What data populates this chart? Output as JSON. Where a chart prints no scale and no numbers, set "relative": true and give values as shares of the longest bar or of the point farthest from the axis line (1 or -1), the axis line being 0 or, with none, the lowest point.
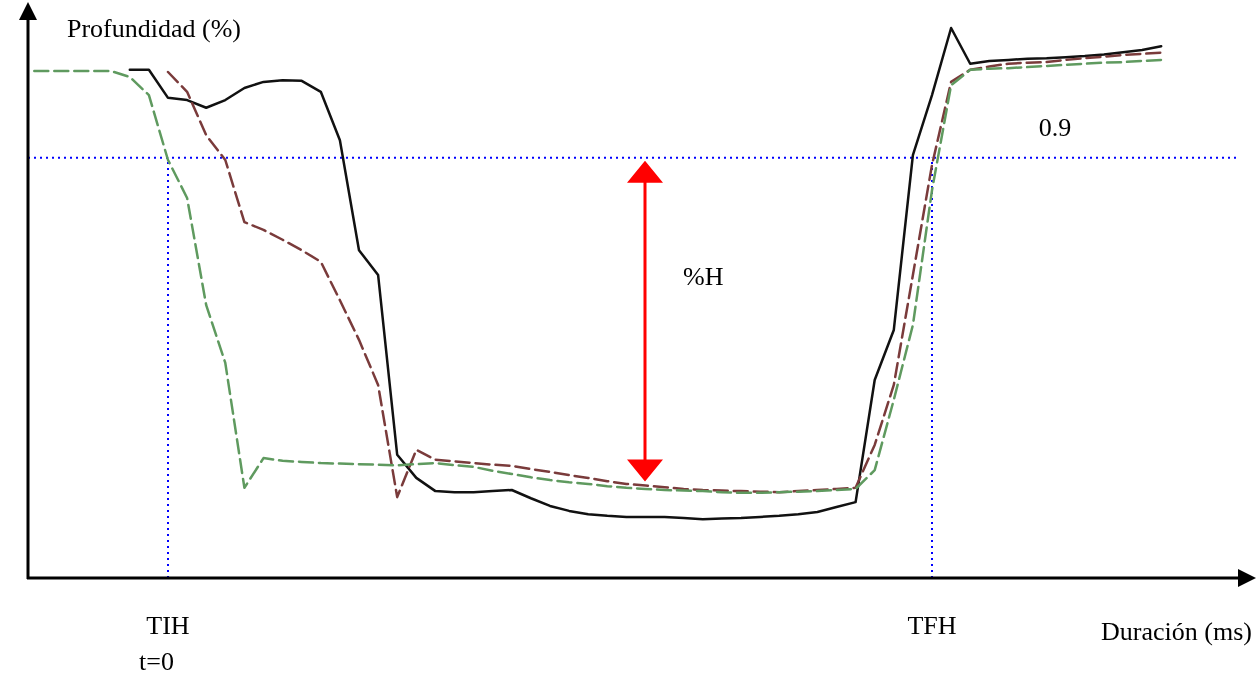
{
  "chart_data": {
    "type": "line",
    "relative": true,
    "xlabel": "Duración (ms)",
    "ylabel": "Profundidad (%)",
    "tick_labels": "x",
    "categories": [
      null,
      null,
      null,
      null,
      null,
      null,
      null,
      "TIH",
      null,
      null,
      null,
      null,
      null,
      null,
      null,
      null,
      null,
      null,
      null,
      null,
      null,
      null,
      null,
      null,
      null,
      null,
      null,
      null,
      null,
      null,
      null,
      null,
      null,
      null,
      null,
      null,
      null,
      null,
      null,
      null,
      null,
      null,
      null,
      null,
      null,
      null,
      null,
      "TFH",
      null,
      null,
      null,
      null,
      null,
      null,
      null,
      null,
      null,
      null,
      null,
      null
    ],
    "series": [
      {
        "color": "#111111",
        "line_style": "solid",
        "values": [
          null,
          null,
          null,
          null,
          null,
          0.924,
          0.924,
          0.873,
          0.869,
          0.855,
          0.869,
          0.891,
          0.902,
          0.905,
          0.904,
          0.884,
          0.796,
          0.596,
          0.551,
          0.224,
          0.182,
          0.158,
          0.156,
          0.156,
          0.158,
          0.16,
          0.145,
          0.131,
          0.122,
          0.116,
          0.113,
          0.111,
          0.111,
          0.111,
          0.109,
          0.107,
          0.108,
          0.109,
          0.111,
          0.113,
          0.116,
          0.12,
          0.129,
          0.138,
          0.36,
          0.451,
          0.769,
          0.878,
          1,
          0.935,
          0.94,
          0.942,
          0.944,
          0.945,
          0.947,
          0.949,
          0.952,
          0.956,
          0.96,
          0.967
        ]
      },
      {
        "color": "#7a3b3b",
        "line_style": "dashed",
        "values": [
          null,
          null,
          null,
          null,
          null,
          null,
          null,
          0.92,
          0.884,
          0.805,
          0.76,
          0.647,
          0.633,
          0.615,
          0.596,
          0.575,
          0.505,
          0.433,
          0.351,
          0.147,
          0.233,
          0.215,
          0.212,
          0.209,
          0.206,
          0.204,
          0.198,
          0.193,
          0.187,
          0.182,
          0.176,
          0.171,
          0.168,
          0.165,
          0.162,
          0.16,
          0.159,
          0.158,
          0.157,
          0.156,
          0.158,
          0.16,
          0.162,
          0.164,
          0.242,
          0.351,
          0.551,
          0.751,
          0.902,
          0.924,
          0.93,
          0.935,
          0.937,
          0.938,
          0.942,
          0.945,
          0.948,
          0.951,
          0.953,
          0.955
        ]
      },
      {
        "color": "#5f9a5f",
        "line_style": "dashed",
        "values": [
          0.922,
          0.922,
          0.922,
          0.922,
          0.922,
          0.911,
          0.878,
          0.76,
          0.691,
          0.496,
          0.391,
          0.164,
          0.218,
          0.213,
          0.211,
          0.209,
          0.208,
          0.207,
          0.206,
          0.205,
          0.207,
          0.209,
          0.205,
          0.202,
          0.195,
          0.189,
          0.183,
          0.178,
          0.174,
          0.171,
          0.167,
          0.164,
          0.162,
          0.16,
          0.159,
          0.158,
          0.156,
          0.155,
          0.155,
          0.156,
          0.157,
          0.158,
          0.16,
          0.162,
          0.196,
          0.324,
          0.46,
          0.705,
          0.896,
          0.924,
          0.926,
          0.927,
          0.929,
          0.931,
          0.933,
          0.935,
          0.937,
          0.938,
          0.94,
          0.942
        ]
      }
    ],
    "ref_lines": [
      {
        "axis": "y",
        "value": 0.764,
        "color": "#0000ff",
        "line_style": "dotted"
      },
      {
        "axis": "x",
        "value": "TIH",
        "color": "#0000ff",
        "line_style": "dotted"
      },
      {
        "axis": "x",
        "value": "TFH",
        "color": "#0000ff",
        "line_style": "dotted"
      }
    ],
    "annotations": [
      "%H",
      "0.9",
      "t=0"
    ]
  }
}
